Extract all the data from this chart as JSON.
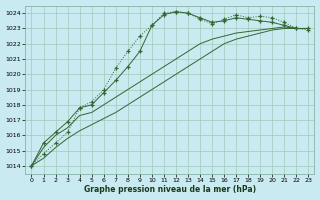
{
  "bg_color": "#c8eaf0",
  "grid_color": "#a0c8b8",
  "line_color": "#336633",
  "title": "Graphe pression niveau de la mer (hPa)",
  "xlim": [
    -0.5,
    23.5
  ],
  "ylim": [
    1013.5,
    1024.5
  ],
  "xtick_labels": [
    "0",
    "1",
    "2",
    "3",
    "4",
    "5",
    "6",
    "7",
    "8",
    "9",
    "10",
    "11",
    "12",
    "13",
    "14",
    "15",
    "16",
    "17",
    "18",
    "19",
    "20",
    "21",
    "22",
    "23"
  ],
  "ytick_labels": [
    "1014",
    "1015",
    "1016",
    "1017",
    "1018",
    "1019",
    "1020",
    "1021",
    "1022",
    "1023",
    "1024"
  ],
  "ytick_vals": [
    1014,
    1015,
    1016,
    1017,
    1018,
    1019,
    1020,
    1021,
    1022,
    1023,
    1024
  ],
  "series_dotted_markers": [
    1014.0,
    1014.8,
    1015.5,
    1016.2,
    1017.8,
    1018.2,
    1019.0,
    1020.4,
    1021.5,
    1022.5,
    1023.2,
    1024.0,
    1024.1,
    1024.0,
    1023.6,
    1023.3,
    1023.6,
    1023.9,
    1023.7,
    1023.8,
    1023.7,
    1023.4,
    1023.0,
    1022.9
  ],
  "series_solid_markers": [
    1014.0,
    1015.5,
    1016.2,
    1016.9,
    1017.8,
    1018.0,
    1018.8,
    1019.6,
    1020.5,
    1021.5,
    1023.2,
    1023.9,
    1024.1,
    1024.0,
    1023.7,
    1023.4,
    1023.5,
    1023.7,
    1023.6,
    1023.5,
    1023.4,
    1023.2,
    1023.0,
    1023.0
  ],
  "series_solid1": [
    1014.0,
    1015.2,
    1016.0,
    1016.5,
    1017.3,
    1017.5,
    1018.0,
    1018.5,
    1019.0,
    1019.5,
    1020.0,
    1020.5,
    1021.0,
    1021.5,
    1022.0,
    1022.3,
    1022.5,
    1022.7,
    1022.8,
    1022.9,
    1023.0,
    1023.1,
    1023.0,
    1023.0
  ],
  "series_solid2": [
    1014.0,
    1014.5,
    1015.2,
    1015.8,
    1016.3,
    1016.7,
    1017.1,
    1017.5,
    1018.0,
    1018.5,
    1019.0,
    1019.5,
    1020.0,
    1020.5,
    1021.0,
    1021.5,
    1022.0,
    1022.3,
    1022.5,
    1022.7,
    1022.9,
    1023.0,
    1023.0,
    1023.0
  ]
}
